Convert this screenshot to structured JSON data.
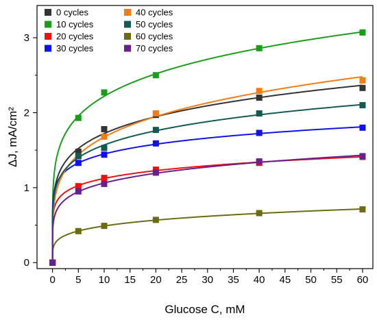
{
  "chart_data": {
    "type": "scatter",
    "title": "",
    "xlabel": "Glucose C, mM",
    "ylabel": "ΔJ, mA/cm²",
    "xlim": [
      -3,
      62
    ],
    "ylim": [
      -0.08,
      3.43
    ],
    "xticks": [
      "0",
      "5",
      "10",
      "15",
      "20",
      "25",
      "30",
      "35",
      "40",
      "45",
      "50",
      "55",
      "60"
    ],
    "yticks": [
      "0",
      "1",
      "2",
      "3"
    ],
    "grid": false,
    "legend_position": "top-left",
    "x": [
      0,
      5,
      10,
      20,
      40,
      60
    ],
    "series": [
      {
        "name": "0 cycles",
        "color": "#333333",
        "values": [
          0,
          1.48,
          1.78,
          1.97,
          2.2,
          2.33
        ]
      },
      {
        "name": "10 cycles",
        "color": "#1a9e1a",
        "values": [
          0,
          1.93,
          2.27,
          2.5,
          2.86,
          3.07
        ]
      },
      {
        "name": "20 cycles",
        "color": "#ee1111",
        "values": [
          0,
          1.02,
          1.13,
          1.24,
          1.33,
          1.41
        ]
      },
      {
        "name": "30 cycles",
        "color": "#1111ee",
        "values": [
          0,
          1.33,
          1.44,
          1.59,
          1.73,
          1.8
        ]
      },
      {
        "name": "40 cycles",
        "color": "#f57c14",
        "values": [
          0,
          1.42,
          1.68,
          1.99,
          2.29,
          2.43
        ]
      },
      {
        "name": "50 cycles",
        "color": "#135a52",
        "values": [
          0,
          1.42,
          1.53,
          1.77,
          1.99,
          2.1
        ]
      },
      {
        "name": "60 cycles",
        "color": "#6b6b12",
        "values": [
          0,
          0.42,
          0.49,
          0.57,
          0.66,
          0.71
        ]
      },
      {
        "name": "70 cycles",
        "color": "#6a1f8e",
        "values": [
          0,
          0.95,
          1.05,
          1.2,
          1.35,
          1.42
        ]
      }
    ]
  }
}
